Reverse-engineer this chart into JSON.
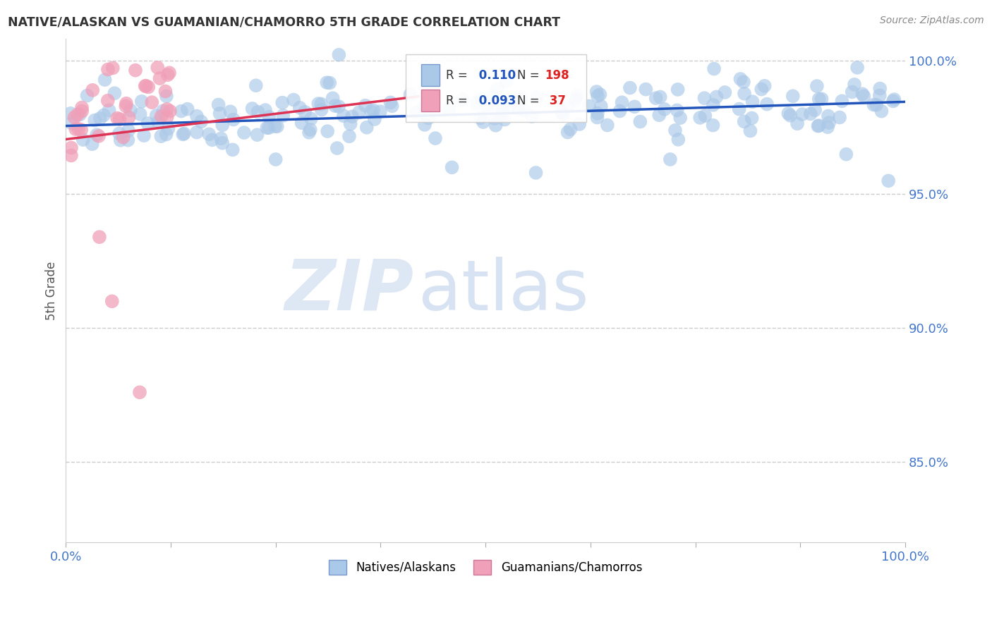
{
  "title": "NATIVE/ALASKAN VS GUAMANIAN/CHAMORRO 5TH GRADE CORRELATION CHART",
  "source": "Source: ZipAtlas.com",
  "ylabel": "5th Grade",
  "xlim": [
    0.0,
    1.0
  ],
  "ylim": [
    0.82,
    1.008
  ],
  "yticks": [
    0.85,
    0.9,
    0.95,
    1.0
  ],
  "ytick_labels": [
    "85.0%",
    "90.0%",
    "95.0%",
    "100.0%"
  ],
  "blue_R": "0.110",
  "blue_N": "198",
  "pink_R": "0.093",
  "pink_N": "37",
  "blue_color": "#aac8e8",
  "pink_color": "#f0a0b8",
  "blue_line_color": "#2255bb",
  "pink_line_color": "#dd3355",
  "legend_blue_label": "Natives/Alaskans",
  "legend_pink_label": "Guamanians/Chamorros",
  "watermark_zip": "ZIP",
  "watermark_atlas": "atlas",
  "background_color": "#ffffff",
  "grid_color": "#cccccc",
  "title_color": "#333333",
  "axis_color": "#4477cc",
  "legend_R_color": "#333333",
  "legend_val_color": "#2255bb",
  "legend_N_val_color": "#dd2222",
  "blue_line_x0": 0.0,
  "blue_line_y0": 0.9755,
  "blue_line_x1": 1.0,
  "blue_line_y1": 0.9845,
  "pink_line_x0": 0.0,
  "pink_line_x1": 0.42,
  "pink_line_y0": 0.9705,
  "pink_line_y1": 0.9865
}
